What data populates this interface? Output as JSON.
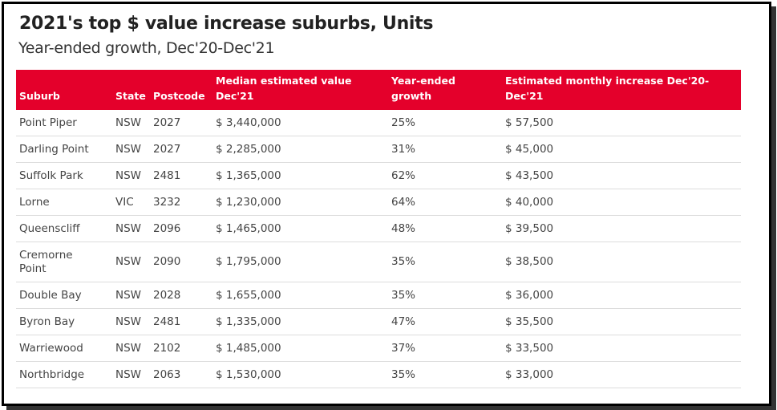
{
  "title": "2021's top $ value increase suburbs, Units",
  "subtitle": "Year-ended growth, Dec'20-Dec'21",
  "colors": {
    "header": "#e4002b"
  },
  "columns": [
    "Suburb",
    "State",
    "Postcode",
    "Median estimated value Dec'21",
    "Year-ended growth",
    "Estimated monthly increase Dec'20-Dec'21"
  ],
  "rows": [
    [
      "Point Piper",
      "NSW",
      "2027",
      "$ 3,440,000",
      "25%",
      "$ 57,500"
    ],
    [
      "Darling Point",
      "NSW",
      "2027",
      "$ 2,285,000",
      "31%",
      "$ 45,000"
    ],
    [
      "Suffolk Park",
      "NSW",
      "2481",
      "$ 1,365,000",
      "62%",
      "$ 43,500"
    ],
    [
      "Lorne",
      "VIC",
      "3232",
      "$ 1,230,000",
      "64%",
      "$ 40,000"
    ],
    [
      "Queenscliff",
      "NSW",
      "2096",
      "$ 1,465,000",
      "48%",
      "$ 39,500"
    ],
    [
      "Cremorne Point",
      "NSW",
      "2090",
      "$ 1,795,000",
      "35%",
      "$ 38,500"
    ],
    [
      "Double Bay",
      "NSW",
      "2028",
      "$ 1,655,000",
      "35%",
      "$ 36,000"
    ],
    [
      "Byron Bay",
      "NSW",
      "2481",
      "$ 1,335,000",
      "47%",
      "$ 35,500"
    ],
    [
      "Warriewood",
      "NSW",
      "2102",
      "$ 1,485,000",
      "37%",
      "$ 33,500"
    ],
    [
      "Northbridge",
      "NSW",
      "2063",
      "$ 1,530,000",
      "35%",
      "$ 33,000"
    ]
  ]
}
